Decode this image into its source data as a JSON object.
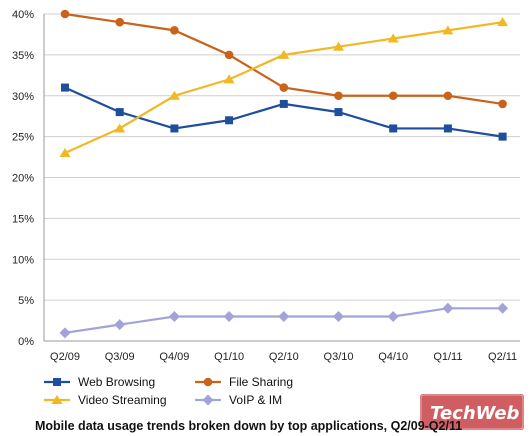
{
  "chart_data": {
    "type": "line",
    "title": "Mobile data usage trends broken down by top applications, Q2/09-Q2/11",
    "xlabel": "",
    "ylabel": "",
    "ylim": [
      0,
      40
    ],
    "yticks": [
      "0%",
      "5%",
      "10%",
      "15%",
      "20%",
      "25%",
      "30%",
      "35%",
      "40%"
    ],
    "grid": "horizontal",
    "legend_position": "bottom",
    "categories": [
      "Q2/09",
      "Q3/09",
      "Q4/09",
      "Q1/10",
      "Q2/10",
      "Q3/10",
      "Q4/10",
      "Q1/11",
      "Q2/11"
    ],
    "series": [
      {
        "name": "Web Browsing",
        "marker": "square",
        "color": "#1f4e9c",
        "values": [
          31,
          28,
          26,
          27,
          29,
          28,
          26,
          26,
          25
        ]
      },
      {
        "name": "File Sharing",
        "marker": "circle",
        "color": "#c9621a",
        "values": [
          40,
          39,
          38,
          35,
          31,
          30,
          30,
          30,
          29
        ]
      },
      {
        "name": "Video Streaming",
        "marker": "triangle",
        "color": "#f1b824",
        "values": [
          23,
          26,
          30,
          32,
          35,
          36,
          37,
          38,
          39
        ]
      },
      {
        "name": "VoIP & IM",
        "marker": "diamond",
        "color": "#a3a3d8",
        "values": [
          1,
          2,
          3,
          3,
          3,
          3,
          3,
          4,
          4
        ]
      }
    ]
  },
  "watermark": {
    "text": "TechWeb",
    "color": "#c0272d"
  }
}
